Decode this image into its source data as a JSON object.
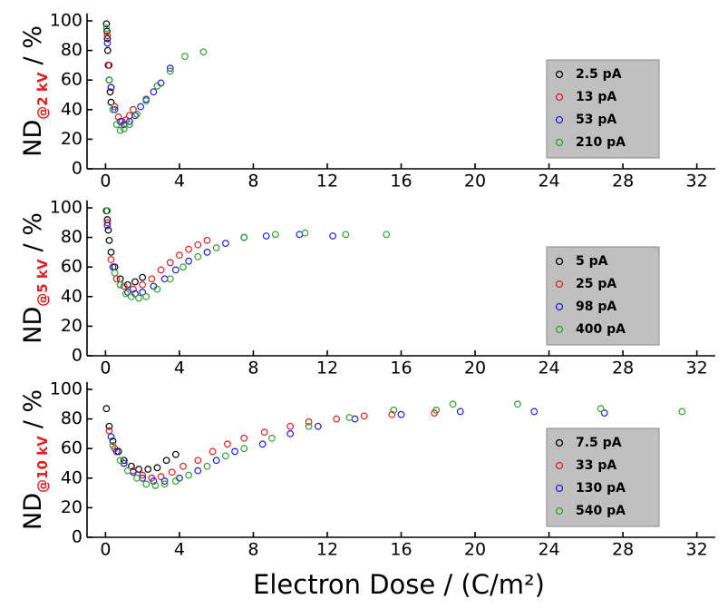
{
  "chart_data": [
    {
      "type": "scatter",
      "y_label": "ND",
      "y_label_subscript": "@2 kV",
      "y_label_unit": "/ %",
      "xlim": [
        -1,
        33
      ],
      "xticks": [
        0,
        4,
        8,
        12,
        16,
        20,
        24,
        28,
        32
      ],
      "ylim": [
        0,
        105
      ],
      "yticks": [
        0,
        20,
        40,
        60,
        80,
        100
      ],
      "legend": "right",
      "series": [
        {
          "name": "2.5 pA",
          "color": "#000000",
          "x": [
            0.05,
            0.08,
            0.1,
            0.12,
            0.15,
            0.2,
            0.25,
            0.3
          ],
          "y": [
            98,
            93,
            88,
            80,
            70,
            60,
            52,
            45
          ]
        },
        {
          "name": "13 pA",
          "color": "#e02020",
          "x": [
            0.1,
            0.2,
            0.3,
            0.5,
            0.7,
            0.9,
            1.1,
            1.3,
            1.5
          ],
          "y": [
            90,
            70,
            55,
            42,
            35,
            32,
            33,
            36,
            40
          ]
        },
        {
          "name": "53 pA",
          "color": "#2020e0",
          "x": [
            0.1,
            0.3,
            0.5,
            0.8,
            1.0,
            1.3,
            1.6,
            1.9,
            2.2,
            2.6,
            3.0,
            3.5
          ],
          "y": [
            85,
            55,
            40,
            32,
            30,
            32,
            36,
            42,
            47,
            52,
            58,
            68
          ]
        },
        {
          "name": "210 pA",
          "color": "#30a030",
          "x": [
            0.05,
            0.2,
            0.4,
            0.6,
            0.8,
            1.0,
            1.3,
            1.7,
            2.2,
            2.8,
            3.5,
            4.3,
            5.3
          ],
          "y": [
            95,
            60,
            40,
            30,
            26,
            27,
            30,
            37,
            46,
            56,
            66,
            76,
            79
          ]
        }
      ]
    },
    {
      "type": "scatter",
      "y_label": "ND",
      "y_label_subscript": "@5 kV",
      "y_label_unit": "/ %",
      "xlim": [
        -1,
        33
      ],
      "xticks": [
        0,
        4,
        8,
        12,
        16,
        20,
        24,
        28,
        32
      ],
      "ylim": [
        0,
        105
      ],
      "yticks": [
        0,
        20,
        40,
        60,
        80,
        100
      ],
      "legend": "right",
      "series": [
        {
          "name": "5 pA",
          "color": "#000000",
          "x": [
            0.05,
            0.1,
            0.15,
            0.2,
            0.3,
            0.5,
            0.8,
            1.2,
            1.6,
            2.0
          ],
          "y": [
            98,
            92,
            85,
            78,
            70,
            60,
            52,
            48,
            50,
            53
          ]
        },
        {
          "name": "25 pA",
          "color": "#e02020",
          "x": [
            0.1,
            0.3,
            0.6,
            1.0,
            1.5,
            2.0,
            2.5,
            3.0,
            3.5,
            4.0,
            4.5,
            5.0,
            5.5
          ],
          "y": [
            90,
            65,
            52,
            47,
            45,
            48,
            52,
            58,
            63,
            68,
            72,
            75,
            78
          ]
        },
        {
          "name": "98 pA",
          "color": "#2020e0",
          "x": [
            0.1,
            0.4,
            0.8,
            1.2,
            1.6,
            2.0,
            2.6,
            3.2,
            3.8,
            4.5,
            5.5,
            6.5,
            7.5,
            8.7,
            10.5,
            12.3
          ],
          "y": [
            88,
            60,
            48,
            43,
            42,
            43,
            47,
            52,
            58,
            64,
            70,
            76,
            80,
            81,
            82,
            81
          ]
        },
        {
          "name": "400 pA",
          "color": "#30a030",
          "x": [
            0.1,
            0.5,
            0.8,
            1.1,
            1.4,
            1.8,
            2.2,
            2.8,
            3.5,
            4.2,
            5.0,
            6.0,
            7.5,
            9.2,
            10.8,
            13.0,
            15.2
          ],
          "y": [
            98,
            56,
            48,
            42,
            40,
            39,
            40,
            45,
            52,
            60,
            67,
            73,
            80,
            82,
            83,
            82,
            82
          ]
        }
      ]
    },
    {
      "type": "scatter",
      "y_label": "ND",
      "y_label_subscript": "@10 kV",
      "y_label_unit": "/ %",
      "x_label": "Electron Dose / (C/m²)",
      "xlim": [
        -1,
        33
      ],
      "xticks": [
        0,
        4,
        8,
        12,
        16,
        20,
        24,
        28,
        32
      ],
      "ylim": [
        0,
        105
      ],
      "yticks": [
        0,
        20,
        40,
        60,
        80,
        100
      ],
      "legend": "right",
      "series": [
        {
          "name": "7.5 pA",
          "color": "#000000",
          "x": [
            0.05,
            0.2,
            0.4,
            0.7,
            1.0,
            1.4,
            1.8,
            2.3,
            2.8,
            3.3,
            3.8
          ],
          "y": [
            87,
            75,
            65,
            58,
            52,
            48,
            46,
            46,
            47,
            52,
            56
          ]
        },
        {
          "name": "33 pA",
          "color": "#e02020",
          "x": [
            0.2,
            0.5,
            1.0,
            1.5,
            2.0,
            2.5,
            3.0,
            3.6,
            4.2,
            5.0,
            5.8,
            6.6,
            7.5,
            8.6,
            10.0,
            11.0,
            12.5,
            14.0,
            15.5,
            17.8
          ],
          "y": [
            72,
            60,
            50,
            45,
            42,
            40,
            41,
            44,
            48,
            52,
            58,
            63,
            67,
            71,
            75,
            78,
            80,
            82,
            83,
            84
          ]
        },
        {
          "name": "130 pA",
          "color": "#2020e0",
          "x": [
            0.3,
            0.6,
            1.0,
            1.5,
            2.0,
            2.6,
            3.2,
            4.0,
            5.0,
            6.0,
            7.0,
            8.5,
            10,
            11.5,
            13.5,
            16,
            19.2,
            23.2,
            27
          ],
          "y": [
            68,
            58,
            50,
            44,
            40,
            38,
            38,
            40,
            45,
            52,
            58,
            63,
            70,
            75,
            80,
            83,
            85,
            85,
            84
          ]
        },
        {
          "name": "540 pA",
          "color": "#30a030",
          "x": [
            0.4,
            0.8,
            1.2,
            1.7,
            2.2,
            2.7,
            3.2,
            3.8,
            4.5,
            5.5,
            6.5,
            7.5,
            9,
            11,
            13.2,
            15.6,
            17.9,
            18.8,
            22.3,
            26.8,
            31.2
          ],
          "y": [
            62,
            52,
            45,
            40,
            36,
            35,
            36,
            38,
            42,
            48,
            55,
            60,
            67,
            75,
            81,
            86,
            86,
            90,
            90,
            87,
            85
          ]
        }
      ]
    }
  ]
}
